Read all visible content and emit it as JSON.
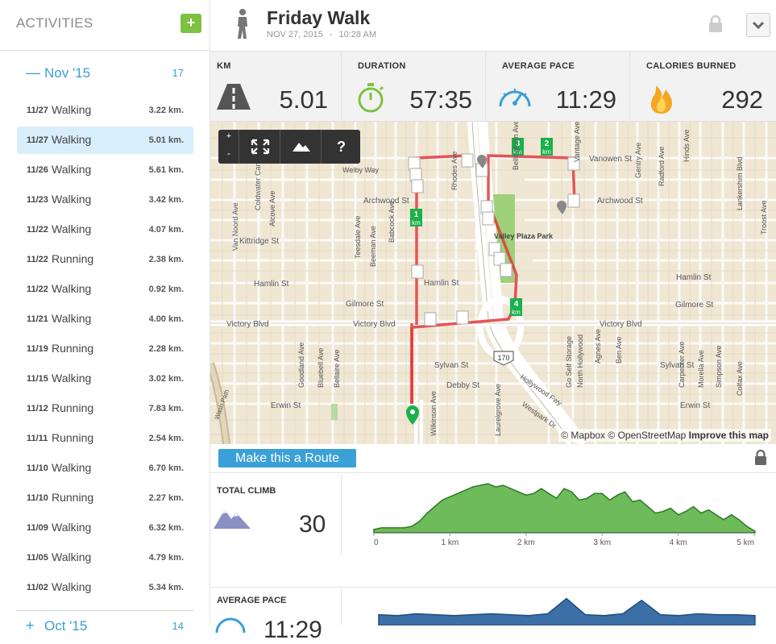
{
  "sidebar": {
    "title": "ACTIVITIES",
    "add_symbol": "+",
    "month": {
      "dash": "—",
      "label": "Nov '15",
      "count": "17"
    },
    "activities": [
      {
        "date": "11/27",
        "type": "Walking",
        "dist": "3.22 km."
      },
      {
        "date": "11/27",
        "type": "Walking",
        "dist": "5.01 km."
      },
      {
        "date": "11/26",
        "type": "Walking",
        "dist": "5.61 km."
      },
      {
        "date": "11/23",
        "type": "Walking",
        "dist": "3.42 km."
      },
      {
        "date": "11/22",
        "type": "Walking",
        "dist": "4.07 km."
      },
      {
        "date": "11/22",
        "type": "Running",
        "dist": "2.38 km."
      },
      {
        "date": "11/22",
        "type": "Walking",
        "dist": "0.92 km."
      },
      {
        "date": "11/21",
        "type": "Walking",
        "dist": "4.00 km."
      },
      {
        "date": "11/19",
        "type": "Running",
        "dist": "2.28 km."
      },
      {
        "date": "11/15",
        "type": "Walking",
        "dist": "3.02 km."
      },
      {
        "date": "11/12",
        "type": "Running",
        "dist": "7.83 km."
      },
      {
        "date": "11/11",
        "type": "Running",
        "dist": "2.54 km."
      },
      {
        "date": "11/10",
        "type": "Walking",
        "dist": "6.70 km."
      },
      {
        "date": "11/10",
        "type": "Running",
        "dist": "2.27 km."
      },
      {
        "date": "11/09",
        "type": "Walking",
        "dist": "6.32 km."
      },
      {
        "date": "11/05",
        "type": "Walking",
        "dist": "4.79 km."
      },
      {
        "date": "11/02",
        "type": "Walking",
        "dist": "5.34 km."
      }
    ],
    "selected_index": 1,
    "next_month": {
      "dash": "+",
      "label": "Oct '15",
      "count": "14"
    }
  },
  "header": {
    "title": "Friday Walk",
    "date": "NOV 27, 2015",
    "sep": "-",
    "time": "10:28 AM"
  },
  "stats": [
    {
      "label": "KM",
      "value": "5.01",
      "icon": "road-icon"
    },
    {
      "label": "DURATION",
      "value": "57:35",
      "icon": "stopwatch-icon"
    },
    {
      "label": "AVERAGE PACE",
      "value": "11:29",
      "icon": "speedometer-icon"
    },
    {
      "label": "CALORIES BURNED",
      "value": "292",
      "icon": "flame-icon"
    }
  ],
  "map": {
    "controls": {
      "zoom_in": "+",
      "zoom_out": "-",
      "help": "?"
    },
    "attribution": {
      "mapbox": "© Mapbox",
      "osm": "© OpenStreetMap",
      "improve": "Improve this map"
    },
    "km_markers": [
      "1",
      "2",
      "3",
      "4"
    ],
    "km_unit": "km",
    "freeway_shield": "170",
    "park": "Valley Plaza Park",
    "streets": [
      "Vanowen St",
      "Archwood St",
      "Welby Way",
      "Kittridge St",
      "Hamlin St",
      "Gilmore St",
      "Victory Blvd",
      "Sylvan St",
      "Debby St",
      "Erwin St",
      "Hollywood Fwy",
      "Westpark Dr",
      "Lankershim Blvd",
      "Troost Ave",
      "Goodland Ave",
      "Bluebell Ave",
      "Bellaire Ave",
      "Teesdale Ave",
      "Beeman Ave",
      "Babcock Ave",
      "Rhodes Ave",
      "Laurelgrove Ave",
      "Coldwater Canyon Ave",
      "Van Noord Ave",
      "Alcove Ave",
      "Agnes Ave",
      "Gentry Ave",
      "Radford Ave",
      "Carpenter Ave",
      "Morella Ave",
      "Simpson Ave",
      "Colfax Ave",
      "Ben Ave",
      "Vantage Ave",
      "Wilkinson Ave",
      "Hinds Ave",
      "North Hollywood",
      "Go Self Storage",
      "Wash Path",
      "Bellingham Ave"
    ]
  },
  "route_button": "Make this a Route",
  "climb": {
    "label": "TOTAL CLIMB",
    "value": "30",
    "ticks": [
      "0",
      "1 km",
      "2 km",
      "3 km",
      "4 km",
      "5 km"
    ]
  },
  "pace": {
    "label": "AVERAGE PACE",
    "value": "11:29"
  },
  "chart_data": [
    {
      "type": "area",
      "title": "TOTAL CLIMB",
      "x": [
        0,
        0.1,
        0.2,
        0.3,
        0.4,
        0.5,
        0.6,
        0.7,
        0.8,
        0.9,
        1.0,
        1.1,
        1.2,
        1.3,
        1.4,
        1.5,
        1.6,
        1.7,
        1.8,
        1.9,
        2.0,
        2.1,
        2.2,
        2.3,
        2.4,
        2.5,
        2.6,
        2.7,
        2.8,
        2.9,
        3.0,
        3.1,
        3.2,
        3.3,
        3.4,
        3.5,
        3.6,
        3.7,
        3.8,
        3.9,
        4.0,
        4.1,
        4.2,
        4.3,
        4.4,
        4.5,
        4.6,
        4.7,
        4.8,
        4.9,
        5.01
      ],
      "y": [
        2,
        3,
        3,
        3,
        3,
        4,
        7,
        12,
        16,
        20,
        22,
        24,
        26,
        28,
        29,
        30,
        28,
        29,
        27,
        25,
        23,
        24,
        27,
        24,
        21,
        27,
        25,
        20,
        21,
        24,
        24,
        20,
        23,
        25,
        19,
        20,
        16,
        12,
        13,
        15,
        11,
        13,
        16,
        12,
        14,
        11,
        8,
        11,
        8,
        4,
        1
      ],
      "xlabel": "km",
      "ylabel": "",
      "xlim": [
        0,
        5
      ],
      "ylim": [
        0,
        32
      ],
      "fill": "#6dbb5b",
      "stroke": "#2c7a23"
    },
    {
      "type": "area",
      "title": "AVERAGE PACE",
      "x": [
        0,
        0.25,
        0.5,
        0.75,
        1.0,
        1.25,
        1.5,
        1.75,
        2.0,
        2.25,
        2.5,
        2.75,
        3.0,
        3.25,
        3.5,
        3.75,
        4.0,
        4.25,
        4.5,
        4.75,
        5.01
      ],
      "y": [
        12,
        11,
        13,
        12,
        11,
        12,
        13,
        12,
        11,
        13,
        30,
        12,
        11,
        13,
        28,
        12,
        11,
        13,
        12,
        12,
        11
      ],
      "xlabel": "km",
      "ylabel": "",
      "xlim": [
        0,
        5
      ],
      "ylim": [
        0,
        35
      ],
      "fill": "#3b6fa5",
      "stroke": "#1f4e80"
    }
  ],
  "colors": {
    "accent": "#3aa0d8",
    "green": "#7dc142",
    "route": "#e0373c",
    "stopwatch": "#7dc142",
    "pace_icon": "#3aa0d8",
    "flame": "#f5a623"
  }
}
